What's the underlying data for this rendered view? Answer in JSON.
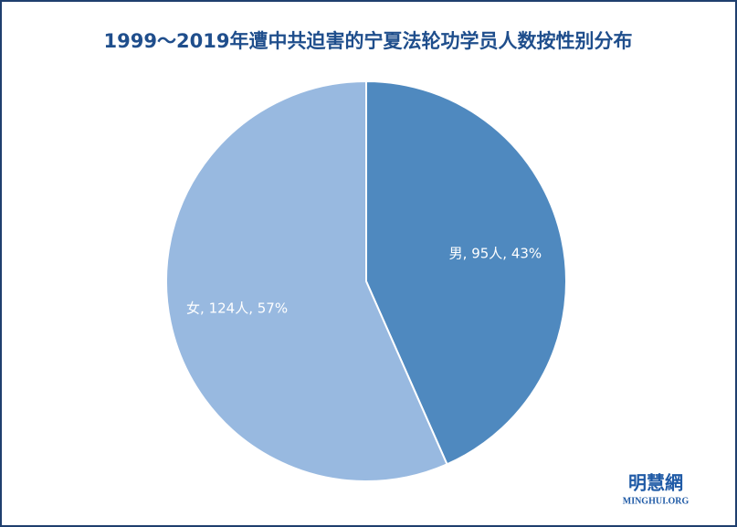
{
  "chart_data": {
    "type": "pie",
    "title": "1999～2019年遭中共迫害的宁夏法轮功学员人数按性别分布",
    "categories": [
      "男",
      "女"
    ],
    "values": [
      95,
      124
    ],
    "value_labels": [
      "男, 95人, 43%",
      "女, 124人, 57%"
    ],
    "colors": [
      "#4f89bf",
      "#98b9e0"
    ]
  },
  "watermark": {
    "name": "明慧網",
    "site": "MINGHUI.ORG"
  }
}
